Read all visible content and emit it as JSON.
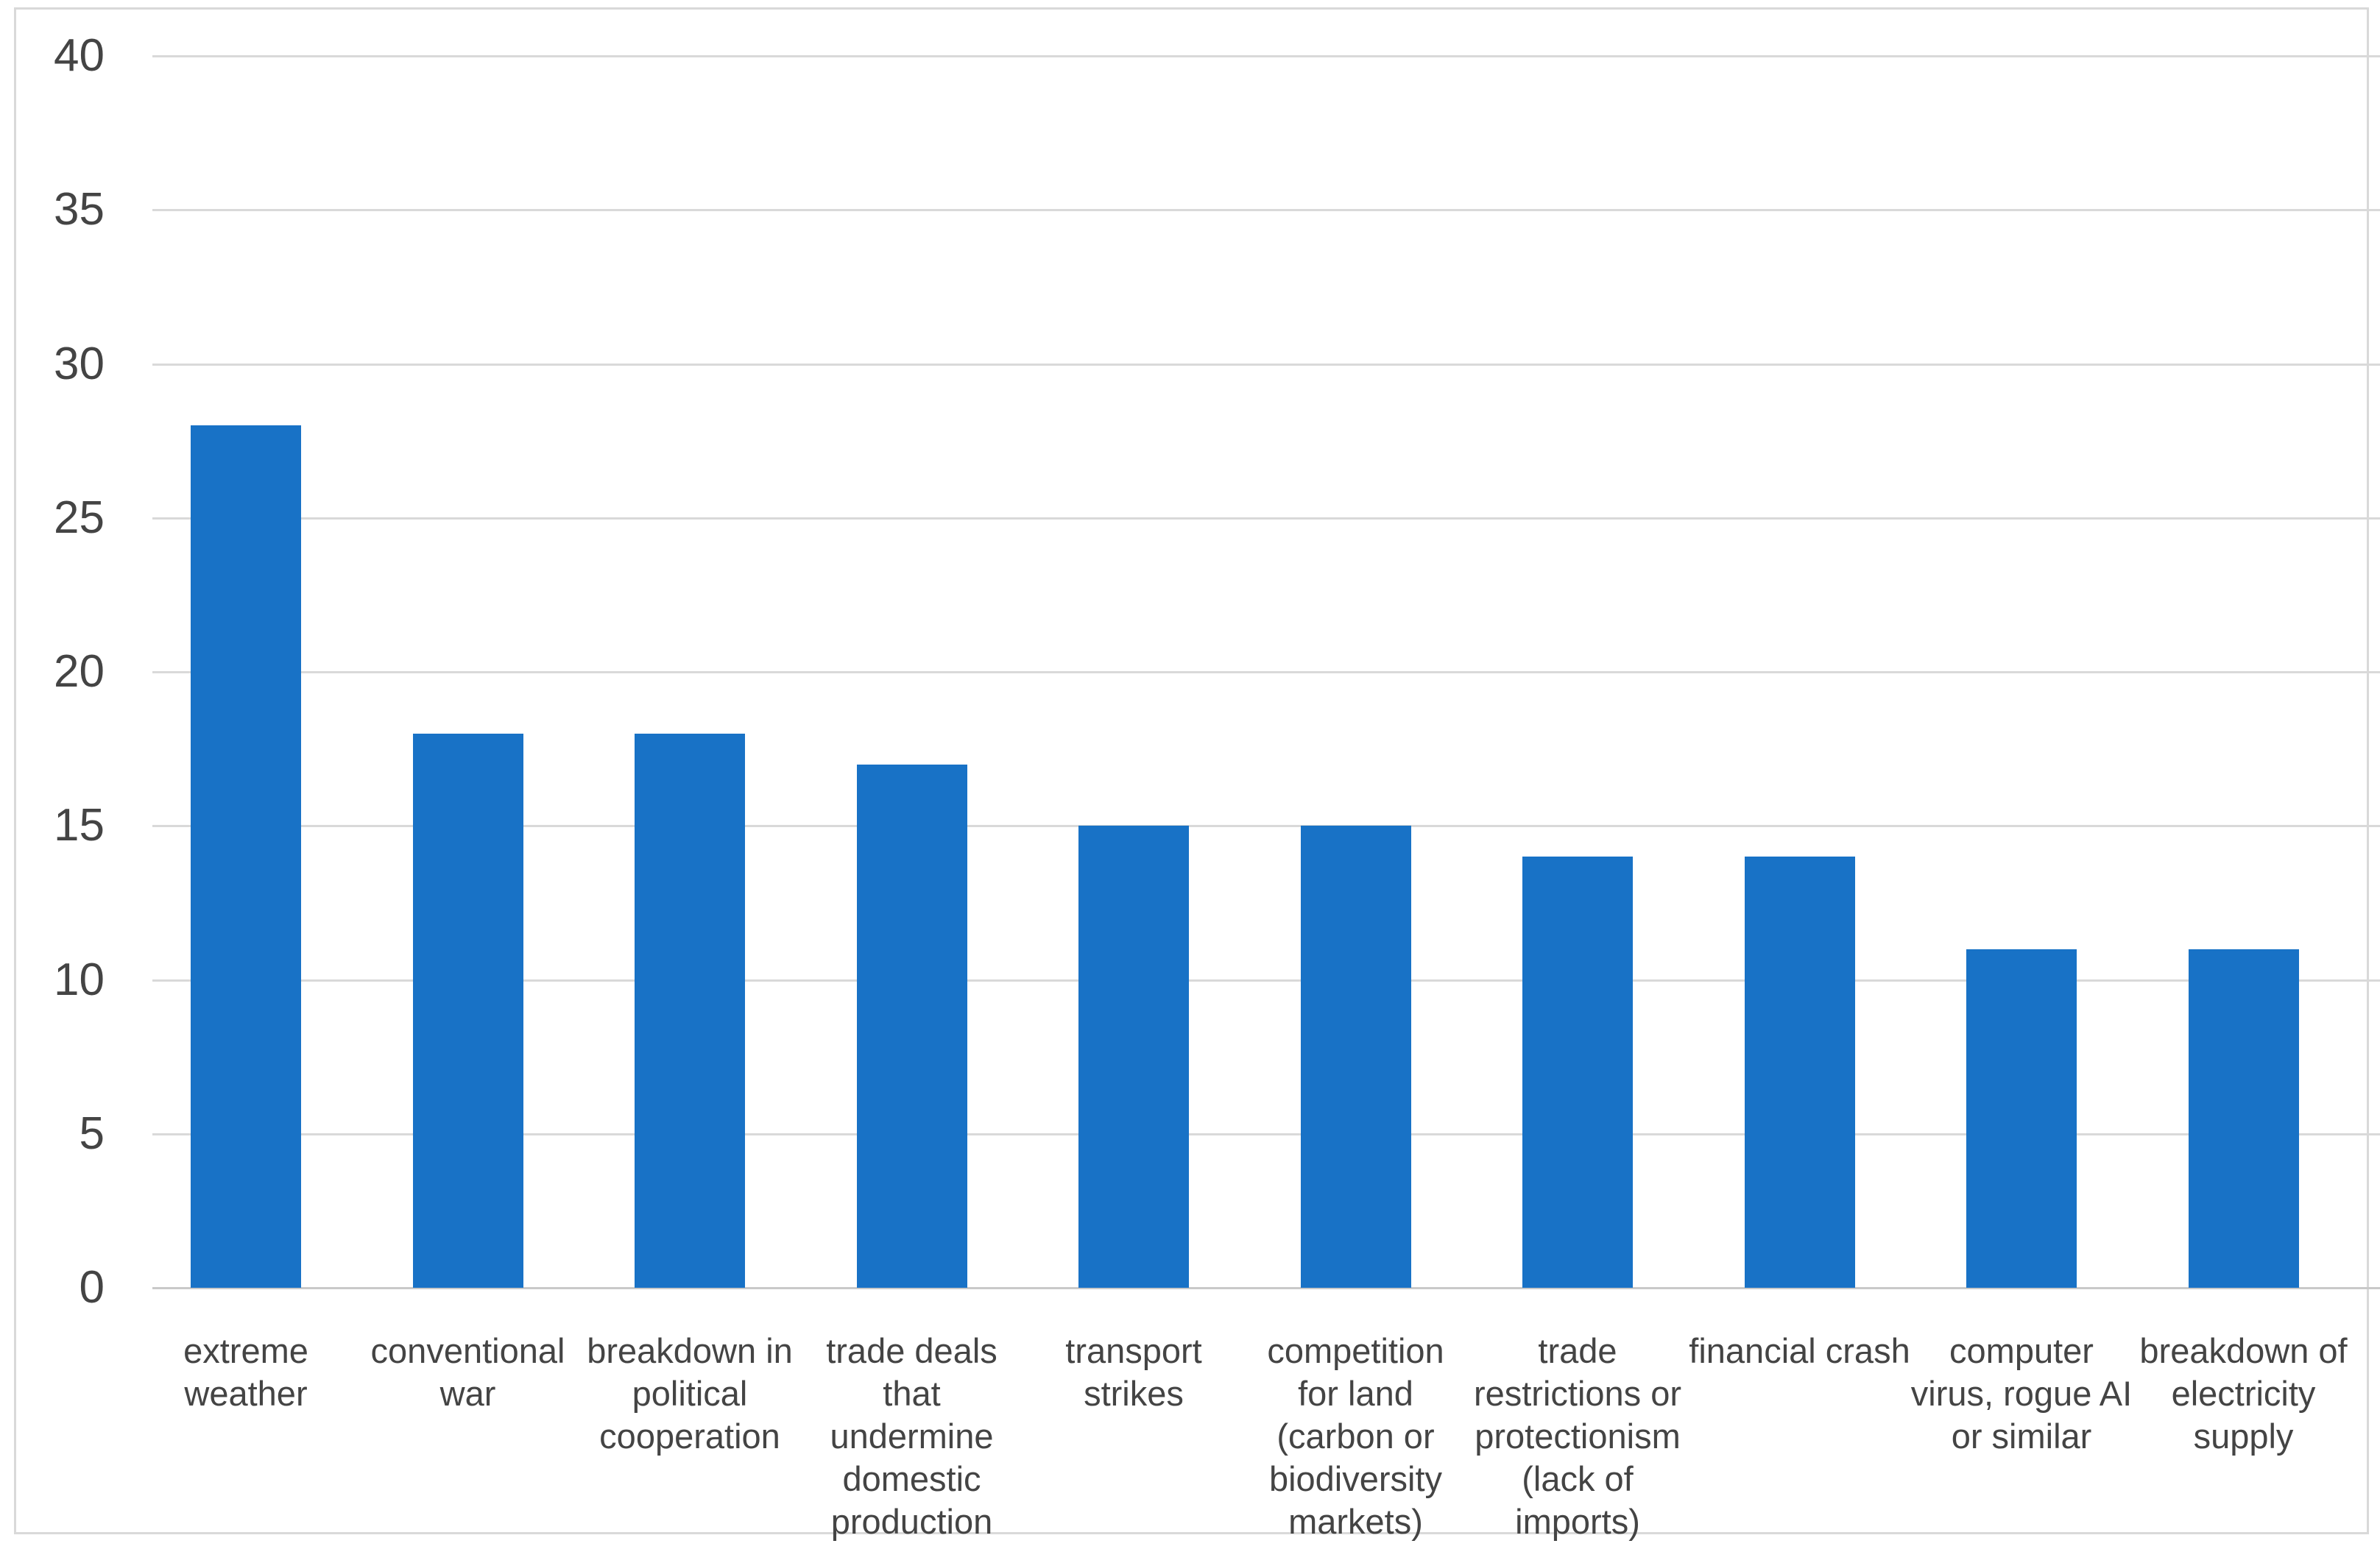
{
  "chart_data": {
    "type": "bar",
    "title": "",
    "xlabel": "",
    "ylabel": "",
    "categories": [
      "extreme weather",
      "conventional war",
      "breakdown in political cooperation",
      "trade deals that undermine domestic production",
      "transport strikes",
      "competition for land (carbon or biodiversity markets)",
      "trade restrictions or protectionism (lack of imports)",
      "financial crash",
      "computer virus, rogue AI or similar",
      "breakdown of electricity supply"
    ],
    "label_lines": [
      [
        "extreme",
        "weather"
      ],
      [
        "conventional",
        "war"
      ],
      [
        "breakdown in",
        "political",
        "cooperation"
      ],
      [
        "trade deals",
        "that",
        "undermine",
        "domestic",
        "production"
      ],
      [
        "transport",
        "strikes"
      ],
      [
        "competition",
        "for land",
        "(carbon or",
        "biodiversity",
        "markets)"
      ],
      [
        "trade",
        "restrictions or",
        "protectionism",
        "(lack of",
        "imports)"
      ],
      [
        "financial crash"
      ],
      [
        "computer",
        "virus, rogue AI",
        "or similar"
      ],
      [
        "breakdown of",
        "electricity",
        "supply"
      ]
    ],
    "values": [
      28,
      18,
      18,
      17,
      15,
      15,
      14,
      14,
      11,
      11
    ],
    "ylim": [
      0,
      40
    ],
    "y_ticks": [
      0,
      5,
      10,
      15,
      20,
      25,
      30,
      35,
      40
    ],
    "grid": "horizontal-only",
    "legend": "none",
    "colors": {
      "bar": "#1872C6",
      "gridline": "#D9D9D9",
      "axis_line": "#C9C9C9",
      "tick_label": "#444444",
      "frame_border": "#D9D9D9",
      "background": "#FFFFFF"
    }
  }
}
